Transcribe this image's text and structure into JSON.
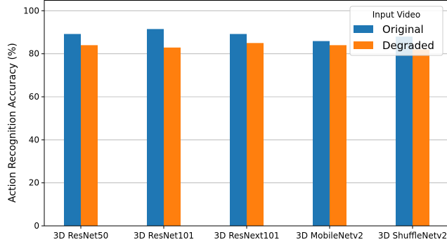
{
  "chart_data": {
    "type": "bar",
    "title": "",
    "xlabel": "",
    "ylabel": "Action Recognition Accuracy (%)",
    "ylim": [
      0,
      105
    ],
    "yticks": [
      0,
      20,
      40,
      60,
      80,
      100
    ],
    "grid": "y",
    "categories": [
      "3D ResNet50",
      "3D ResNet101",
      "3D ResNext101",
      "3D MobileNetv2",
      "3D ShuffleNetv2"
    ],
    "series": [
      {
        "name": "Original",
        "color": "#1f77b4",
        "values": [
          89.2,
          91.5,
          89.2,
          85.9,
          88.0
        ]
      },
      {
        "name": "Degraded",
        "color": "#ff7f0e",
        "values": [
          84.0,
          82.9,
          85.0,
          84.0,
          82.0
        ]
      }
    ],
    "legend": {
      "title": "Input Video",
      "position": "top-right"
    }
  }
}
